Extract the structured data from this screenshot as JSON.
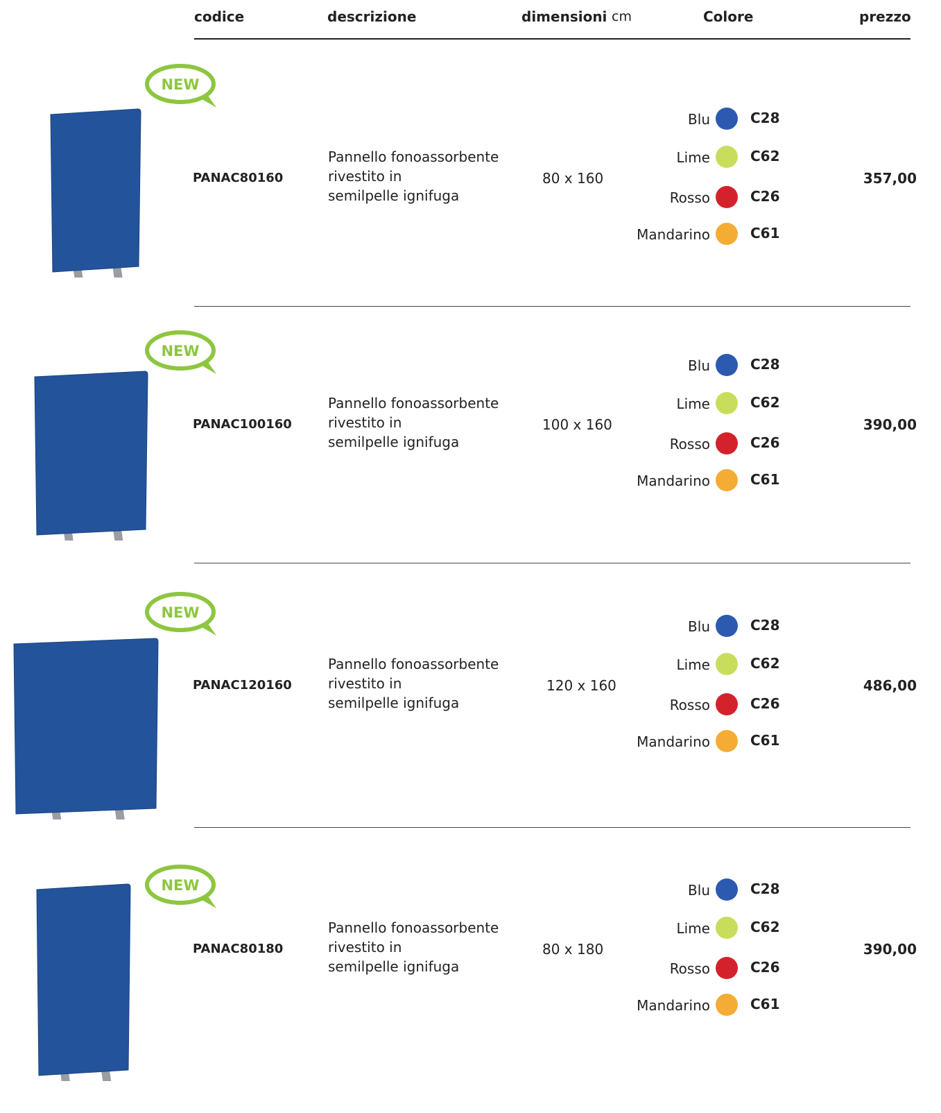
{
  "header": {
    "codice": "codice",
    "descrizione": "descrizione",
    "dimensioni": "dimensioni",
    "unit": "cm",
    "colore": "Colore",
    "prezzo": "prezzo"
  },
  "products": [
    {
      "badge": "NEW",
      "code": "PANAC80160",
      "description": [
        "Pannello fonoassorbente",
        "rivestito in",
        "semilpelle ignifuga"
      ],
      "dimensions": "80 x 160",
      "colors": [
        {
          "name": "Blu",
          "code": "C28"
        },
        {
          "name": "Lime",
          "code": "C62"
        },
        {
          "name": "Rosso",
          "code": "C26"
        },
        {
          "name": "Mandarino",
          "code": "C61"
        }
      ],
      "price": "357,00"
    },
    {
      "badge": "NEW",
      "code": "PANAC100160",
      "description": [
        "Pannello fonoassorbente",
        "rivestito in",
        "semilpelle ignifuga"
      ],
      "dimensions": "100 x 160",
      "colors": [
        {
          "name": "Blu",
          "code": "C28"
        },
        {
          "name": "Lime",
          "code": "C62"
        },
        {
          "name": "Rosso",
          "code": "C26"
        },
        {
          "name": "Mandarino",
          "code": "C61"
        }
      ],
      "price": "390,00"
    },
    {
      "badge": "NEW",
      "code": "PANAC120160",
      "description": [
        "Pannello fonoassorbente",
        "rivestito in",
        "semilpelle ignifuga"
      ],
      "dimensions": "120 x 160",
      "colors": [
        {
          "name": "Blu",
          "code": "C28"
        },
        {
          "name": "Lime",
          "code": "C62"
        },
        {
          "name": "Rosso",
          "code": "C26"
        },
        {
          "name": "Mandarino",
          "code": "C61"
        }
      ],
      "price": "486,00"
    },
    {
      "badge": "NEW",
      "code": "PANAC80180",
      "description": [
        "Pannello fonoassorbente",
        "rivestito in",
        "semilpelle ignifuga"
      ],
      "dimensions": "80 x 180",
      "colors": [
        {
          "name": "Blu",
          "code": "C28"
        },
        {
          "name": "Lime",
          "code": "C62"
        },
        {
          "name": "Rosso",
          "code": "C26"
        },
        {
          "name": "Mandarino",
          "code": "C61"
        }
      ],
      "price": "390,00"
    }
  ]
}
